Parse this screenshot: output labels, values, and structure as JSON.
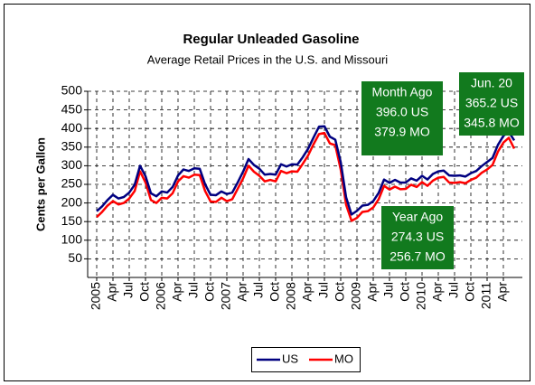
{
  "chart_data": {
    "type": "line",
    "title": "Regular Unleaded Gasoline",
    "subtitle": "Average Retail Prices in the U.S. and Missouri",
    "y_label": "Cents per Gallon",
    "categories": [
      "2005",
      null,
      null,
      "Apr",
      null,
      null,
      "Jul",
      null,
      null,
      "Oct",
      null,
      null,
      "2006",
      null,
      null,
      "Apr",
      null,
      null,
      "Jul",
      null,
      null,
      "Oct",
      null,
      null,
      "2007",
      null,
      null,
      "Apr",
      null,
      null,
      "Jul",
      null,
      null,
      "Oct",
      null,
      null,
      "2008",
      null,
      null,
      "Apr",
      null,
      null,
      "Jul",
      null,
      null,
      "Oct",
      null,
      null,
      "2009",
      null,
      null,
      "Apr",
      null,
      null,
      "Jul",
      null,
      null,
      "Oct",
      null,
      null,
      "2010",
      null,
      null,
      "Apr",
      null,
      null,
      "Jul",
      null,
      null,
      "Oct",
      null,
      null,
      "2011",
      null,
      null,
      "Apr",
      null,
      null
    ],
    "series": [
      {
        "name": "US",
        "color": "#000080",
        "values": [
          178,
          191,
          208,
          222,
          212,
          216,
          228,
          249,
          300,
          272,
          226,
          218,
          231,
          228,
          243,
          274,
          290,
          286,
          293,
          292,
          250,
          222,
          221,
          231,
          224,
          228,
          255,
          284,
          318,
          302,
          292,
          276,
          278,
          276,
          304,
          298,
          304,
          303,
          323,
          346,
          376,
          405,
          406,
          378,
          370,
          310,
          215,
          169,
          179,
          193,
          195,
          205,
          227,
          263,
          254,
          262,
          255,
          255,
          266,
          260,
          273,
          263,
          278,
          285,
          287,
          274,
          273,
          274,
          271,
          280,
          286,
          299,
          310,
          321,
          356,
          380,
          391,
          368
        ]
      },
      {
        "name": "MO",
        "color": "#ff0000",
        "values": [
          162,
          176,
          193,
          205,
          196,
          200,
          212,
          232,
          285,
          255,
          208,
          200,
          214,
          212,
          226,
          258,
          272,
          268,
          276,
          275,
          232,
          204,
          203,
          214,
          205,
          210,
          238,
          266,
          300,
          284,
          273,
          258,
          262,
          258,
          286,
          280,
          285,
          284,
          305,
          328,
          358,
          385,
          388,
          360,
          355,
          290,
          195,
          152,
          160,
          176,
          178,
          188,
          210,
          246,
          236,
          244,
          237,
          238,
          249,
          243,
          256,
          246,
          260,
          268,
          270,
          255,
          254,
          256,
          253,
          262,
          268,
          281,
          290,
          302,
          338,
          362,
          375,
          346
        ]
      }
    ],
    "ylim": [
      0,
      500
    ],
    "yticks": [
      50,
      100,
      150,
      200,
      250,
      300,
      350,
      400,
      450,
      500
    ],
    "grid": true,
    "legend": "bottom",
    "annotations": [
      {
        "lines": [
          "Month Ago",
          "396.0 US",
          "379.9 MO"
        ],
        "color": "#127a1e"
      },
      {
        "lines": [
          "Year Ago",
          "274.3 US",
          "256.7 MO"
        ],
        "color": "#127a1e"
      },
      {
        "lines": [
          "Jun. 20",
          "365.2 US",
          "345.8 MO"
        ],
        "color": "#127a1e"
      }
    ]
  }
}
